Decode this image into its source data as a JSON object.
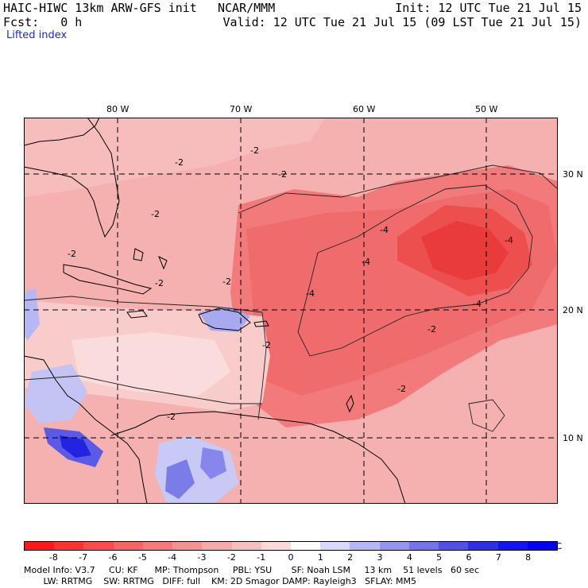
{
  "header": {
    "model": "HAIC-HIWC 13km ARW-GFS init",
    "org": "NCAR/MMM",
    "init": "Init: 12 UTC Tue 21 Jul 15",
    "fcst": "Fcst:   0 h",
    "valid": "Valid: 12 UTC Tue 21 Jul 15 (09 LST Tue 21 Jul 15)",
    "field": "Lifted index"
  },
  "map": {
    "longitudes": [
      "80 W",
      "70 W",
      "60 W",
      "50 W"
    ],
    "latitudes": [
      "30 N",
      "20 N",
      "10 N"
    ],
    "contour_labels": [
      "-2",
      "-4"
    ]
  },
  "colorbar": {
    "ticks": [
      "-8",
      "-7",
      "-6",
      "-5",
      "-4",
      "-3",
      "-2",
      "-1",
      "0",
      "1",
      "2",
      "3",
      "4",
      "5",
      "6",
      "7",
      "8"
    ],
    "unit": "°C",
    "colors": [
      "#ff1a1a",
      "#ff3333",
      "#ff4d4d",
      "#f76464",
      "#f57b7b",
      "#f49292",
      "#f5aaaa",
      "#f7c0c0",
      "#fbdada",
      "#ffffff",
      "#d9d9fb",
      "#b7b7f5",
      "#9595ee",
      "#7373ea",
      "#5151e6",
      "#2f2fe8",
      "#1414ef",
      "#0000f5"
    ]
  },
  "footer": {
    "line1": "Model Info: V3.7     CU: KF      MP: Thompson     PBL: YSU       SF: Noah LSM     13 km    51 levels   60 sec",
    "line2": "       LW: RRTMG    SW: RRTMG   DIFF: full    KM: 2D Smagor DAMP: Rayleigh3   SFLAY: MM5"
  }
}
